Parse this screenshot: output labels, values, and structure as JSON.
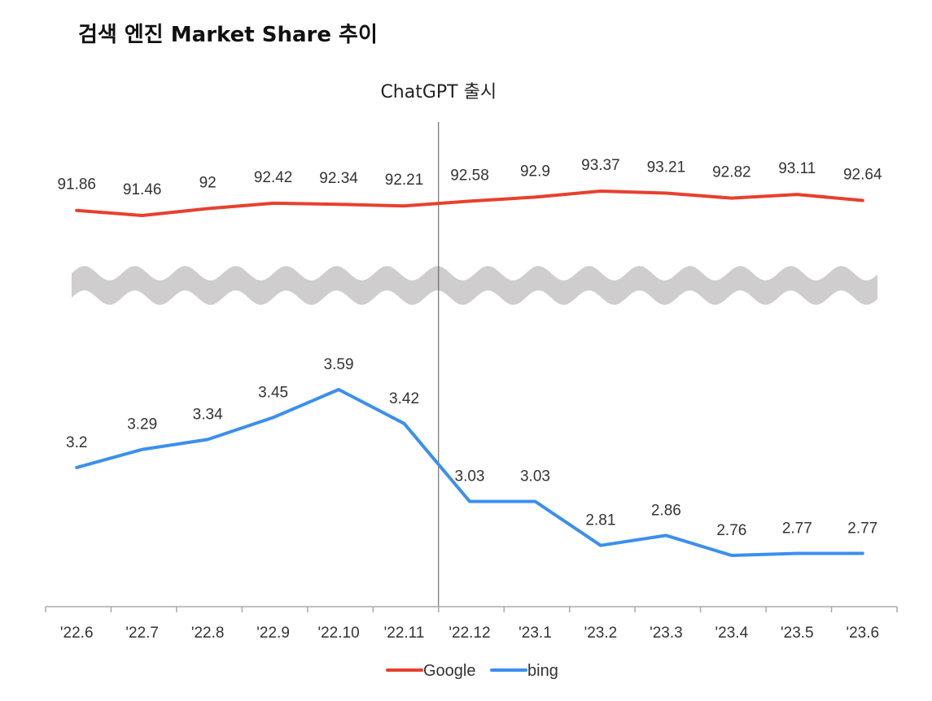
{
  "title": "검색 엔진 Market Share 추이",
  "chart_data": {
    "type": "line",
    "title": "검색 엔진 Market Share 추이",
    "categories": [
      "'22.6",
      "'22.7",
      "'22.8",
      "'22.9",
      "'22.10",
      "'22.11",
      "'22.12",
      "'23.1",
      "'23.2",
      "'23.3",
      "'23.4",
      "'23.5",
      "'23.6"
    ],
    "series": [
      {
        "name": "Google",
        "color": "#e8402f",
        "values": [
          91.86,
          91.46,
          92,
          92.42,
          92.34,
          92.21,
          92.58,
          92.9,
          93.37,
          93.21,
          92.82,
          93.11,
          92.64
        ]
      },
      {
        "name": "bing",
        "color": "#3b8ff0",
        "values": [
          3.2,
          3.29,
          3.34,
          3.45,
          3.59,
          3.42,
          3.03,
          3.03,
          2.81,
          2.86,
          2.76,
          2.77,
          2.77
        ]
      }
    ],
    "axis_break": true,
    "annotation": {
      "text": "ChatGPT 출시",
      "between": [
        "'22.11",
        "'22.12"
      ]
    },
    "legend": "bottom",
    "grid": false
  }
}
